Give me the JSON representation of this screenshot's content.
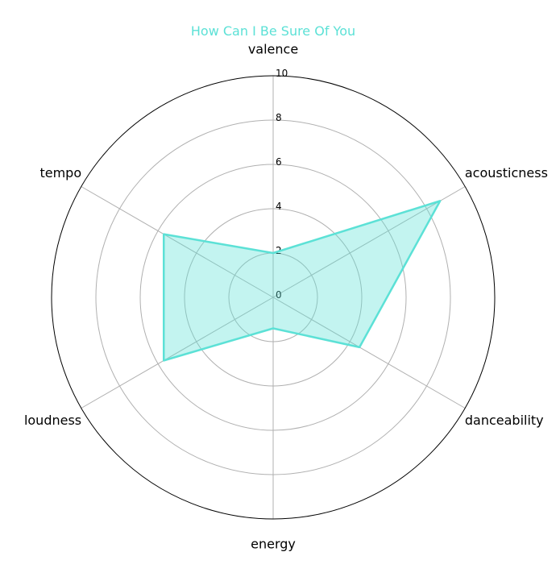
{
  "chart_data": {
    "type": "radar",
    "title": "How Can I Be Sure Of You",
    "axes": [
      "valence",
      "acousticness",
      "danceability",
      "energy",
      "loudness",
      "tempo"
    ],
    "series": [
      {
        "name": "How Can I Be Sure Of You",
        "values": [
          2.0,
          8.7,
          4.5,
          1.4,
          5.7,
          5.7
        ]
      }
    ],
    "rlim": [
      0,
      10
    ],
    "rticks": [
      0,
      2,
      4,
      6,
      8,
      10
    ],
    "grid": true
  },
  "colors": {
    "series": "#5ce1d6",
    "grid": "#b0b0b0",
    "outline": "#000000"
  }
}
